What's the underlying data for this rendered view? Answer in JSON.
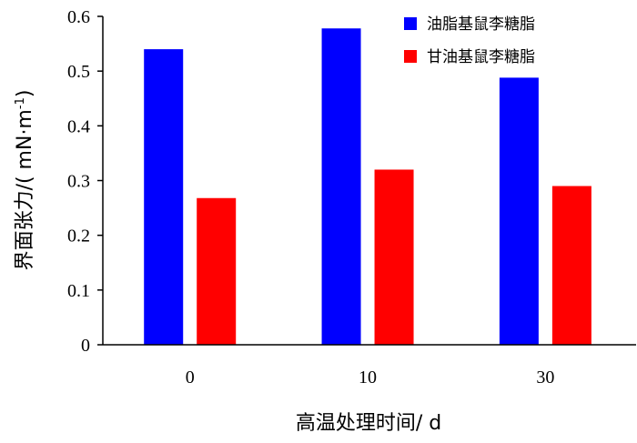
{
  "chart_data": {
    "type": "bar",
    "categories": [
      "0",
      "10",
      "30"
    ],
    "series": [
      {
        "name": "油脂基鼠李糖脂",
        "color": "#0000ff",
        "values": [
          0.54,
          0.578,
          0.488
        ]
      },
      {
        "name": "甘油基鼠李糖脂",
        "color": "#ff0000",
        "values": [
          0.268,
          0.32,
          0.29
        ]
      }
    ],
    "xlabel": "高温处理时间/ d",
    "ylabel_main": "界面张力/( mN·m",
    "ylabel_sup": "-1",
    "ylabel_close": ")",
    "ylim": [
      0,
      0.6
    ],
    "yticks": [
      "0",
      "0.1",
      "0.2",
      "0.3",
      "0.4",
      "0.5",
      "0.6"
    ],
    "legend_position": "top-right",
    "grid": false
  }
}
